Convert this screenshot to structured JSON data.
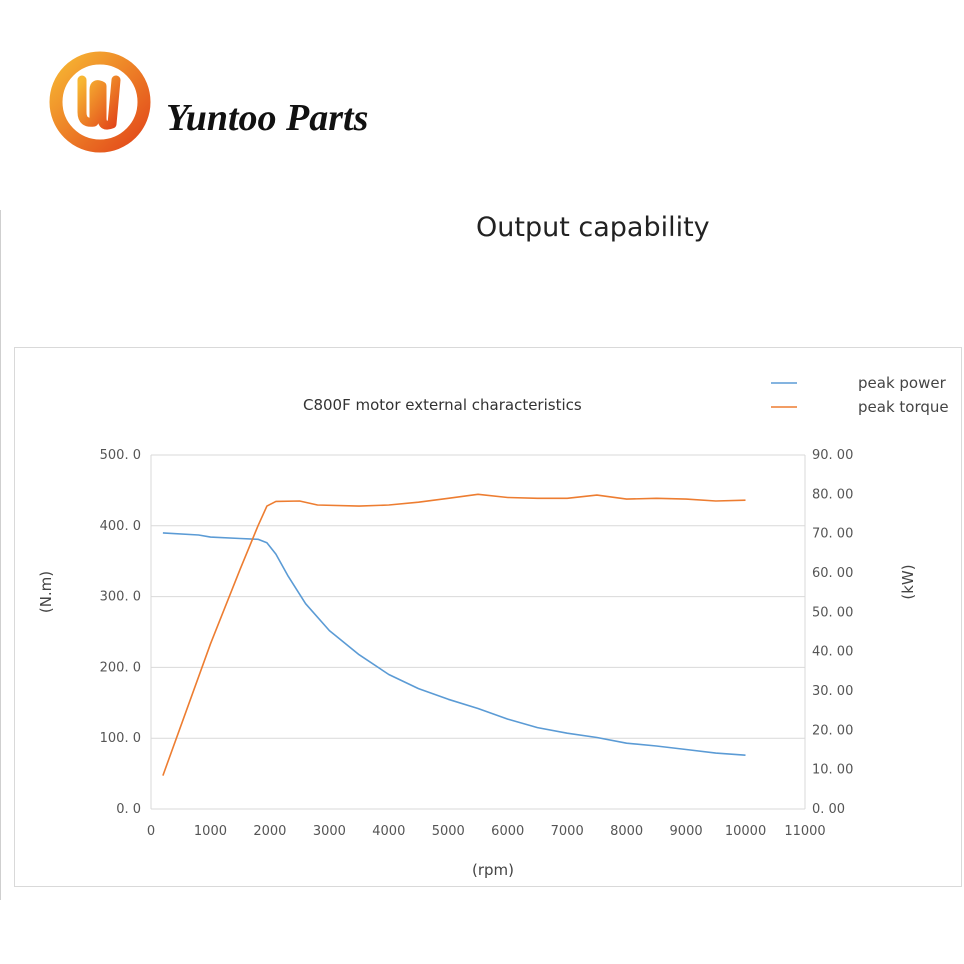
{
  "brand": {
    "name": "Yuntoo Parts",
    "logo_icon": "yuntoo-logo-icon"
  },
  "page": {
    "title": "Output capability"
  },
  "colors": {
    "power": "#5b9bd5",
    "torque": "#ed7d31",
    "grid": "#d9d9d9",
    "logo_orange": "#f2a93b",
    "logo_red": "#e2461a"
  },
  "chart_data": {
    "type": "line",
    "title": "C800F motor  external characteristics",
    "xlabel": "(rpm)",
    "ylabel_left": "(N.m)",
    "ylabel_right": "(kW)",
    "xlim": [
      0,
      11000
    ],
    "ylim_left": [
      0,
      500
    ],
    "ylim_right": [
      0,
      90
    ],
    "x_ticks": [
      "0",
      "1000",
      "2000",
      "3000",
      "4000",
      "5000",
      "6000",
      "7000",
      "8000",
      "9000",
      "10000",
      "11000"
    ],
    "y_ticks_left": [
      "0.0",
      "100.0",
      "200.0",
      "300.0",
      "400.0",
      "500.0"
    ],
    "y_ticks_right": [
      "0.00",
      "10.00",
      "20.00",
      "30.00",
      "40.00",
      "50.00",
      "60.00",
      "70.00",
      "80.00",
      "90.00"
    ],
    "grid": true,
    "legend_position": "top-right",
    "series": [
      {
        "name": "peak power",
        "axis": "left",
        "color": "#5b9bd5",
        "points": [
          [
            200,
            390
          ],
          [
            800,
            387
          ],
          [
            1000,
            384
          ],
          [
            1500,
            382
          ],
          [
            1800,
            381
          ],
          [
            1950,
            376
          ],
          [
            2100,
            360
          ],
          [
            2300,
            330
          ],
          [
            2600,
            290
          ],
          [
            3000,
            252
          ],
          [
            3500,
            218
          ],
          [
            4000,
            190
          ],
          [
            4500,
            170
          ],
          [
            5000,
            155
          ],
          [
            5500,
            142
          ],
          [
            6000,
            127
          ],
          [
            6500,
            115
          ],
          [
            7000,
            107
          ],
          [
            7500,
            101
          ],
          [
            8000,
            93
          ],
          [
            8500,
            89
          ],
          [
            9000,
            84
          ],
          [
            9500,
            79
          ],
          [
            10000,
            76
          ]
        ]
      },
      {
        "name": "peak torque",
        "axis": "right",
        "color": "#ed7d31",
        "points": [
          [
            200,
            8.5
          ],
          [
            1000,
            42
          ],
          [
            1500,
            61
          ],
          [
            1800,
            72
          ],
          [
            1950,
            77
          ],
          [
            2100,
            78.2
          ],
          [
            2500,
            78.3
          ],
          [
            2800,
            77.3
          ],
          [
            3500,
            77
          ],
          [
            4000,
            77.3
          ],
          [
            4500,
            78
          ],
          [
            5000,
            79
          ],
          [
            5500,
            80
          ],
          [
            6000,
            79.2
          ],
          [
            6500,
            79
          ],
          [
            7000,
            79
          ],
          [
            7500,
            79.8
          ],
          [
            8000,
            78.8
          ],
          [
            8500,
            79
          ],
          [
            9000,
            78.8
          ],
          [
            9500,
            78.3
          ],
          [
            10000,
            78.5
          ]
        ]
      }
    ]
  }
}
